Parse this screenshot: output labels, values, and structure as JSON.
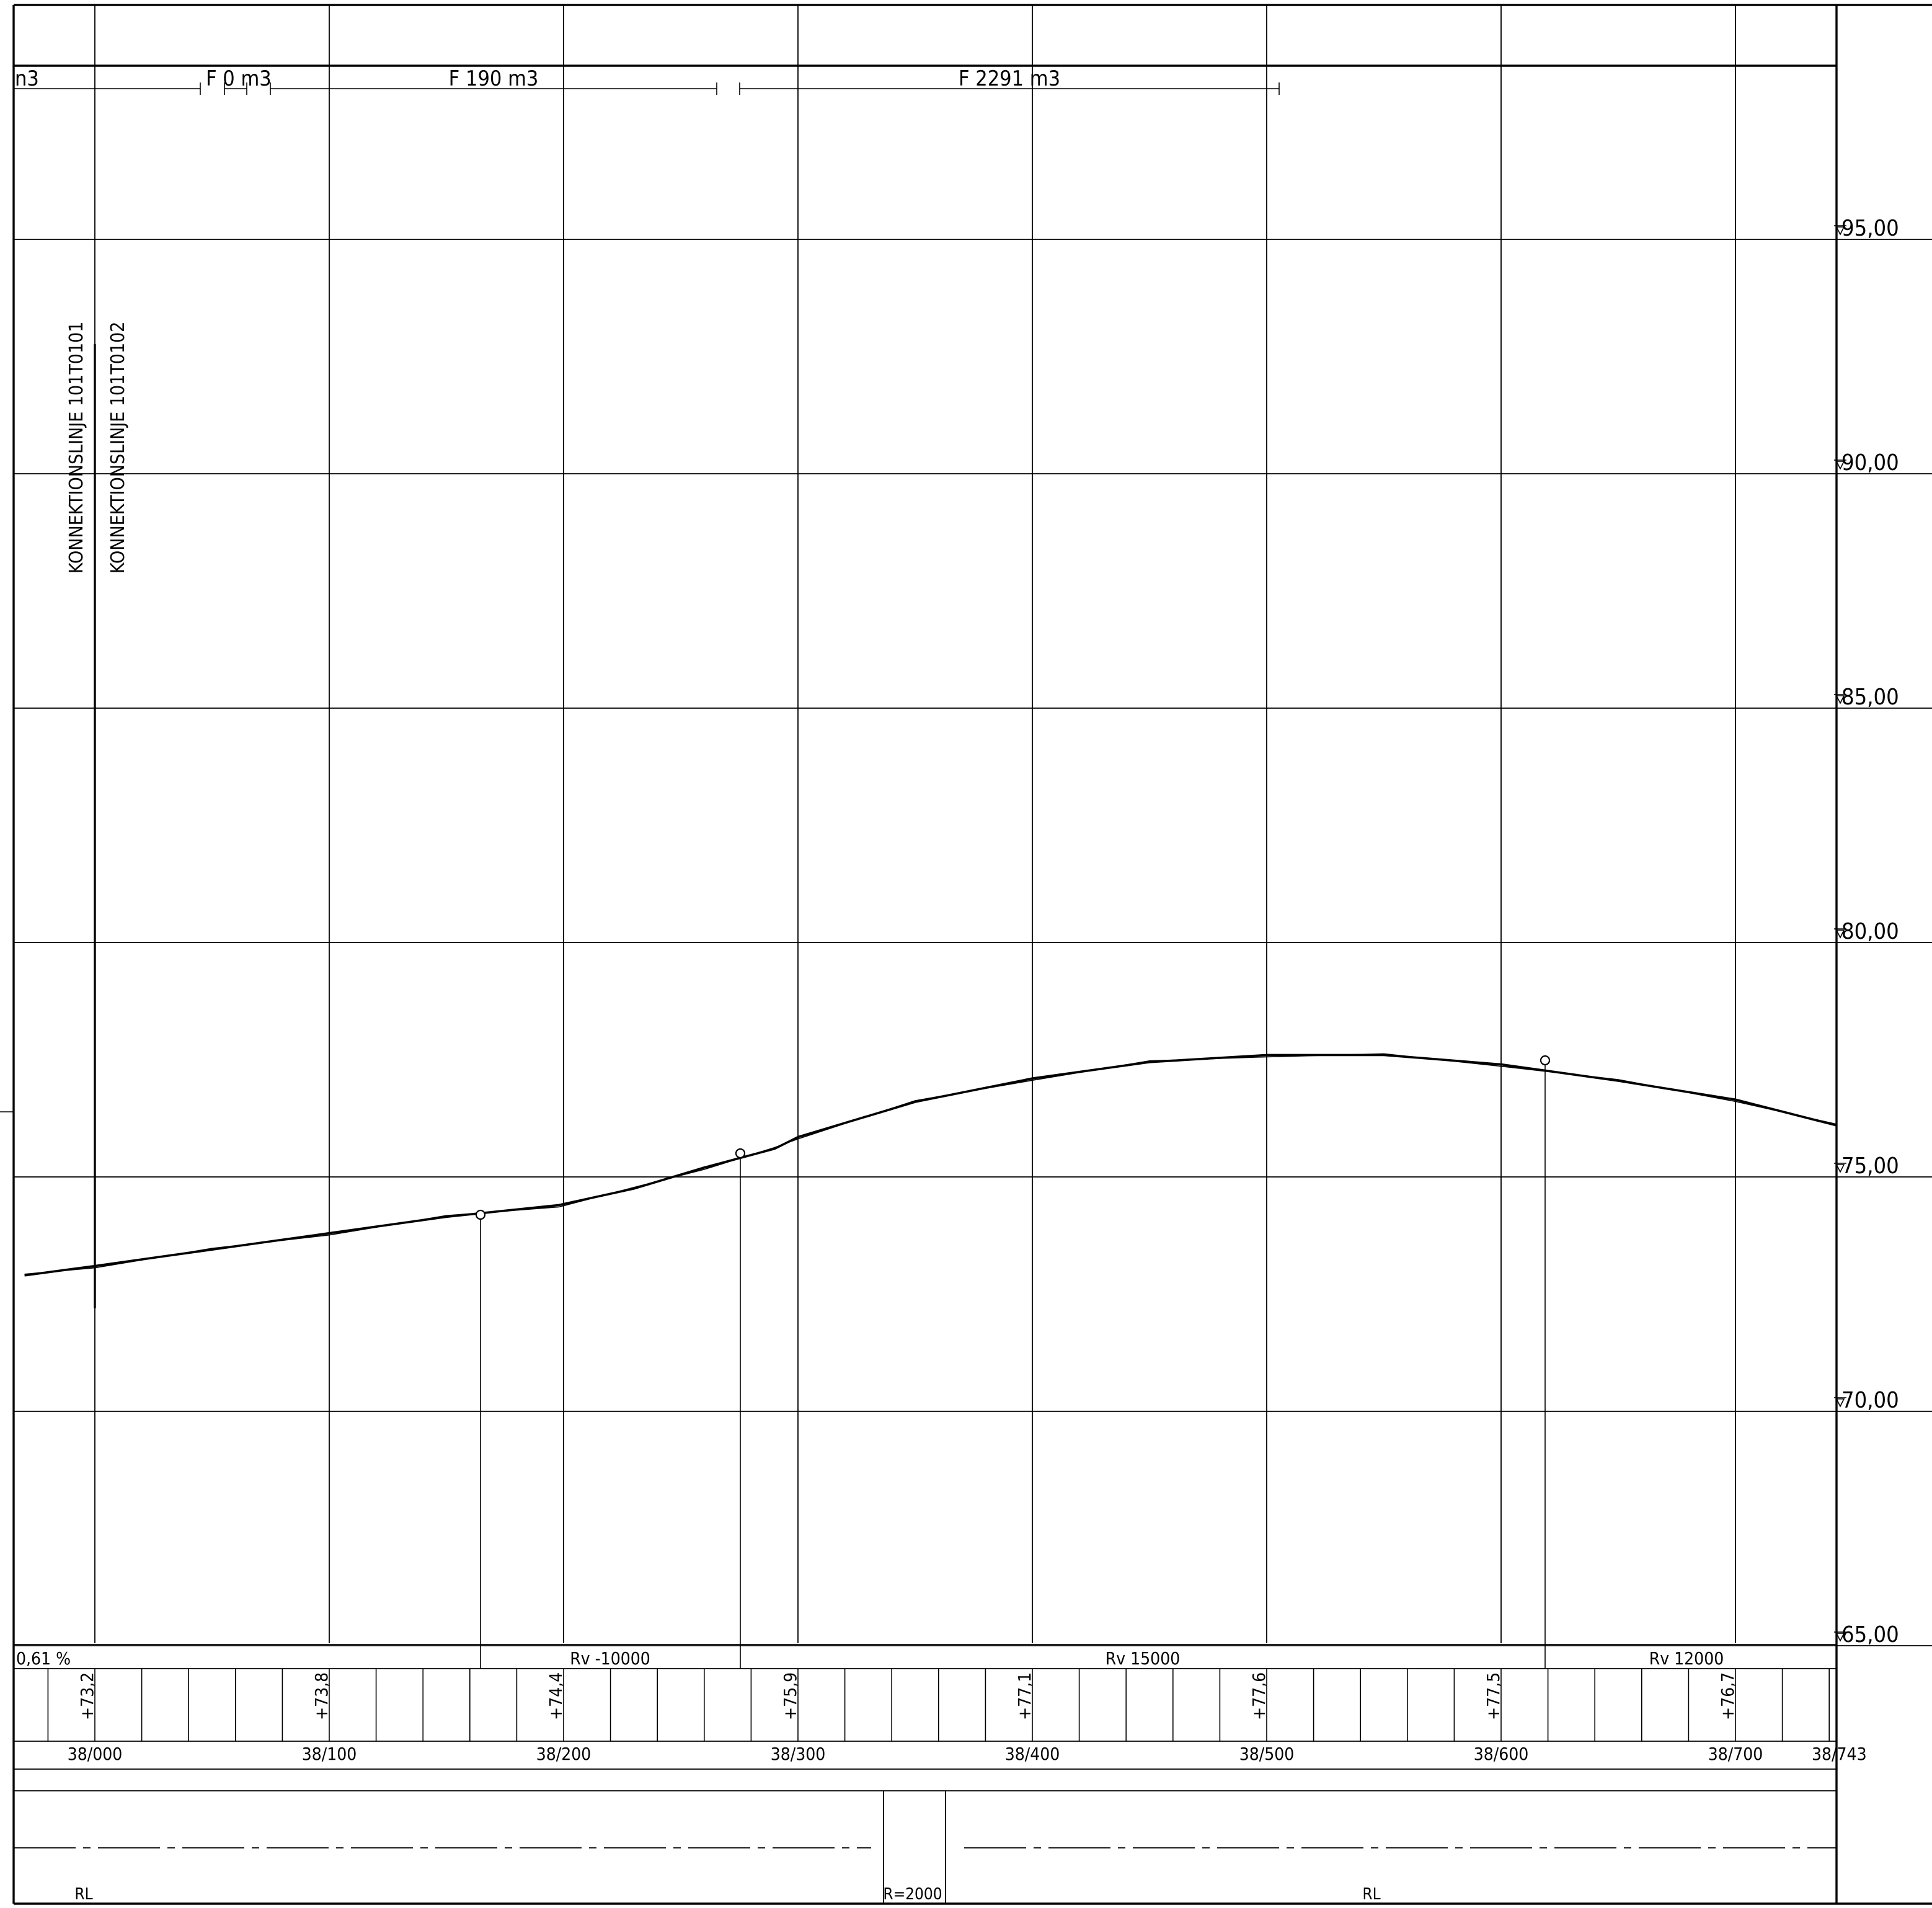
{
  "volumes": [
    {
      "label": "n3"
    },
    {
      "label": "F 0 m3"
    },
    {
      "label": "F 190 m3"
    },
    {
      "label": "F 2291 m3"
    }
  ],
  "connection_labels": [
    {
      "label": "KONNEKTIONSLINJE 101T0101"
    },
    {
      "label": "KONNEKTIONSLINJE 101T0102"
    }
  ],
  "elevation_labels": [
    "95,00",
    "90,00",
    "85,00",
    "80,00",
    "75,00",
    "70,00",
    "65,00"
  ],
  "curve_band": {
    "grade": "0,61 %",
    "radii": [
      "Rv -10000",
      "Rv 15000",
      "Rv 12000"
    ]
  },
  "level_values": [
    "+73,2",
    "+73,8",
    "+74,4",
    "+75,9",
    "+77,1",
    "+77,6",
    "+77,5",
    "+76,7"
  ],
  "stations": [
    "38/000",
    "38/100",
    "38/200",
    "38/300",
    "38/400",
    "38/500",
    "38/600",
    "38/700",
    "38/743"
  ],
  "alignment_band": {
    "left_label": "RL",
    "middle_label": "R=2000",
    "right_label": "RL"
  },
  "chart_data": {
    "type": "line",
    "x": [
      -30,
      0,
      50,
      100,
      150,
      198,
      230,
      260,
      290,
      300,
      350,
      400,
      450,
      500,
      550,
      600,
      650,
      700,
      743
    ],
    "series": [
      {
        "values": [
          72.9,
          73.1,
          73.45,
          73.8,
          74.15,
          74.4,
          74.75,
          75.2,
          75.6,
          75.85,
          76.6,
          77.1,
          77.45,
          77.6,
          77.6,
          77.4,
          77.05,
          76.65,
          76.1
        ]
      }
    ],
    "ylim": [
      65,
      97.5
    ],
    "grid": true
  }
}
